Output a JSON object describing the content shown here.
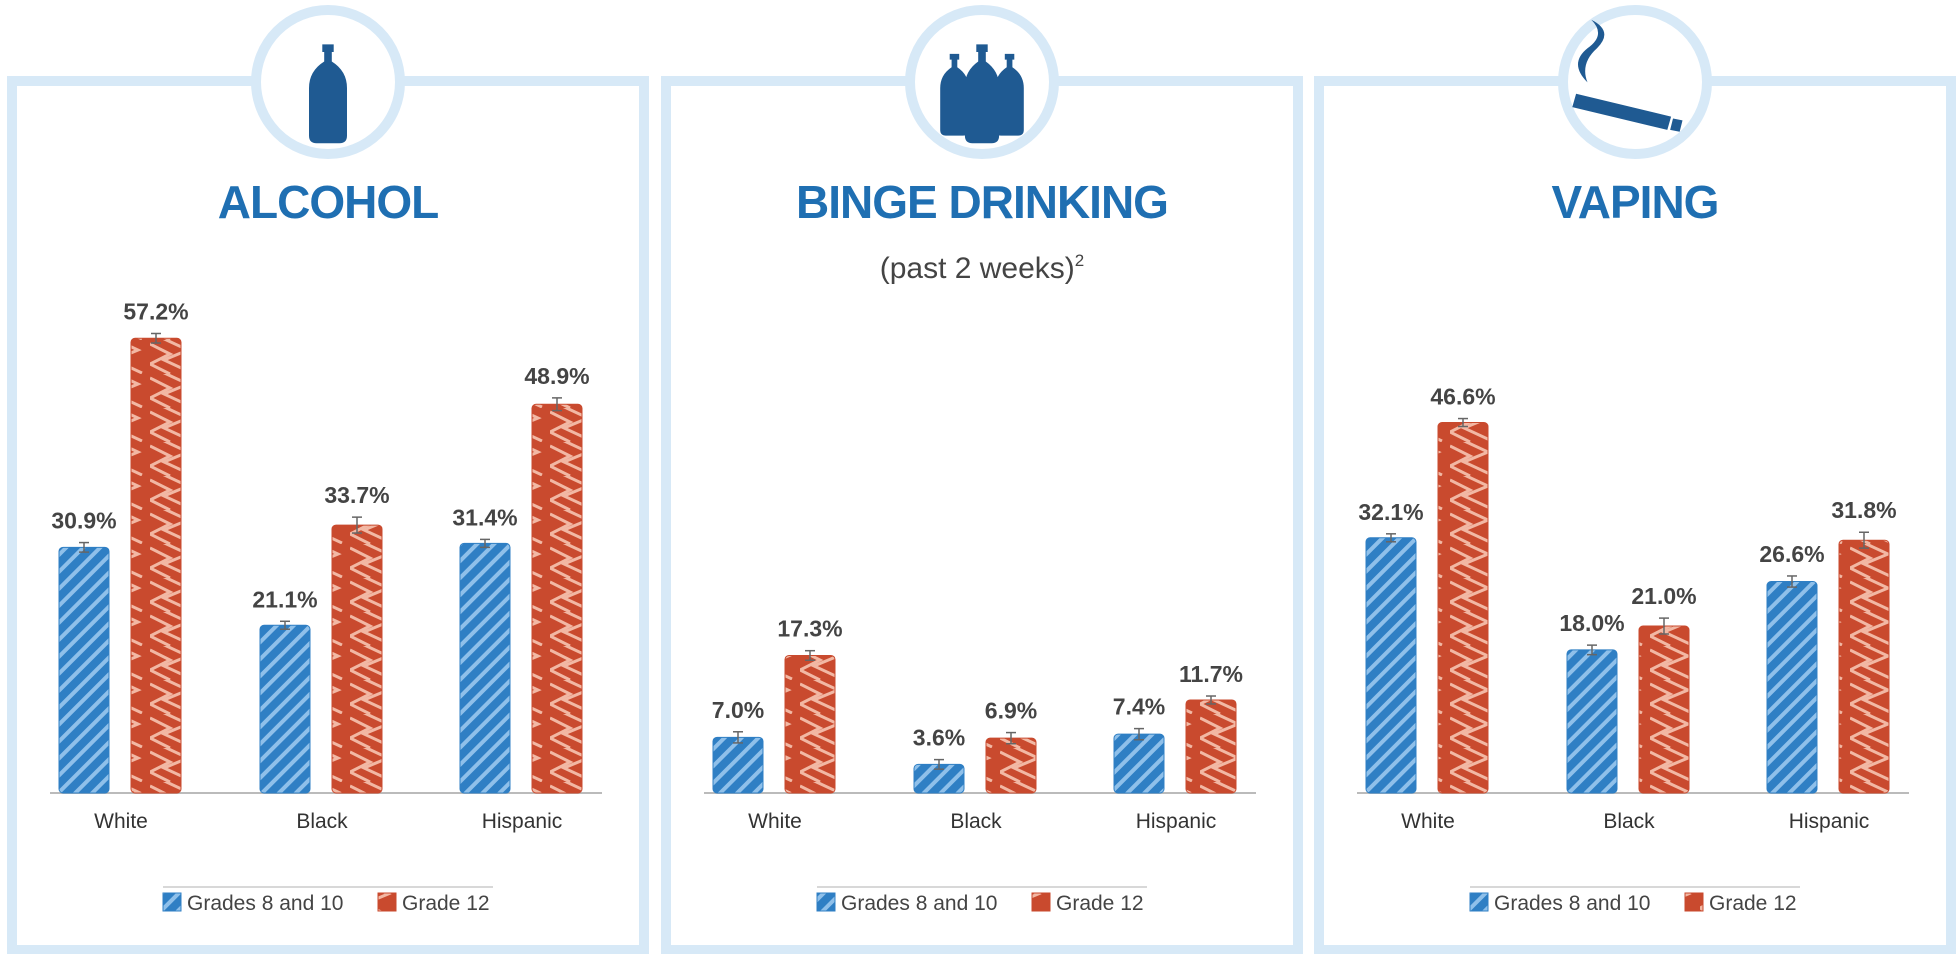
{
  "chart_data": [
    {
      "type": "bar",
      "title": "ALCOHOL",
      "categories": [
        "White",
        "Black",
        "Hispanic"
      ],
      "series": [
        {
          "name": "Grades 8 and 10",
          "color": "#2f7fc4",
          "values": [
            30.9,
            21.1,
            31.4
          ],
          "value_labels": [
            "30.9%",
            "21.1%",
            "31.4%"
          ],
          "errors": [
            0.6,
            0.5,
            0.5
          ]
        },
        {
          "name": "Grade 12",
          "color": "#c94a2e",
          "values": [
            57.2,
            33.7,
            48.9
          ],
          "value_labels": [
            "57.2%",
            "33.7%",
            "48.9%"
          ],
          "errors": [
            0.6,
            1.0,
            0.8
          ]
        }
      ]
    },
    {
      "type": "bar",
      "title": "BINGE DRINKING",
      "subtitle": "(past 2 weeks)",
      "subtitle_note": "2",
      "categories": [
        "White",
        "Black",
        "Hispanic"
      ],
      "series": [
        {
          "name": "Grades 8 and 10",
          "color": "#2f7fc4",
          "values": [
            7.0,
            3.6,
            7.4
          ],
          "value_labels": [
            "7.0%",
            "3.6%",
            "7.4%"
          ],
          "errors": [
            0.7,
            0.6,
            0.7
          ]
        },
        {
          "name": "Grade 12",
          "color": "#c94a2e",
          "values": [
            17.3,
            6.9,
            11.7
          ],
          "value_labels": [
            "17.3%",
            "6.9%",
            "11.7%"
          ],
          "errors": [
            0.6,
            0.7,
            0.5
          ]
        }
      ]
    },
    {
      "type": "bar",
      "title": "VAPING",
      "categories": [
        "White",
        "Black",
        "Hispanic"
      ],
      "series": [
        {
          "name": "Grades 8 and 10",
          "color": "#2f7fc4",
          "values": [
            32.1,
            18.0,
            26.6
          ],
          "value_labels": [
            "32.1%",
            "18.0%",
            "26.6%"
          ],
          "errors": [
            0.5,
            0.6,
            0.7
          ]
        },
        {
          "name": "Grade 12",
          "color": "#c94a2e",
          "values": [
            46.6,
            21.0,
            31.8
          ],
          "value_labels": [
            "46.6%",
            "21.0%",
            "31.8%"
          ],
          "errors": [
            0.5,
            1.0,
            1.0
          ]
        }
      ]
    }
  ]
}
